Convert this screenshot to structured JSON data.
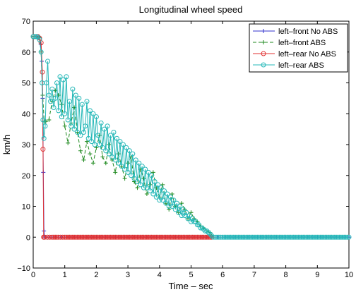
{
  "chart_data": {
    "type": "line",
    "title": "Longitudinal wheel speed",
    "xlabel": "Time – sec",
    "ylabel": "km/h",
    "xlim": [
      0,
      10
    ],
    "ylim": [
      -10,
      70
    ],
    "xticks": [
      0,
      1,
      2,
      3,
      4,
      5,
      6,
      7,
      8,
      9,
      10
    ],
    "yticks": [
      -10,
      0,
      10,
      20,
      30,
      40,
      50,
      60,
      70
    ],
    "xtick_labels": [
      "0",
      "1",
      "2",
      "3",
      "4",
      "5",
      "6",
      "7",
      "8",
      "9",
      "10"
    ],
    "ytick_labels": [
      "−10",
      "0",
      "10",
      "20",
      "30",
      "40",
      "50",
      "60",
      "70"
    ],
    "grid": false,
    "legend_position": "top-right",
    "series": [
      {
        "name": "left–front No ABS",
        "color": "#3030cc",
        "marker": "plus",
        "line": "solid",
        "x": [
          0.0,
          0.05,
          0.1,
          0.15,
          0.2,
          0.24,
          0.27,
          0.3,
          0.32,
          0.34,
          0.36,
          0.4,
          0.5,
          1,
          2,
          3,
          4,
          5,
          5.7,
          6,
          7,
          8,
          9,
          10
        ],
        "y": [
          65,
          65,
          65,
          65,
          64.6,
          62.5,
          57,
          45,
          21,
          2,
          0,
          0,
          0,
          0,
          0,
          0,
          0,
          0,
          0,
          0,
          0,
          0,
          0,
          0
        ]
      },
      {
        "name": "left–front ABS",
        "color": "#1f8a1f",
        "marker": "plus",
        "line": "dashed",
        "x": [
          0.0,
          0.1,
          0.2,
          0.25,
          0.3,
          0.35,
          0.4,
          0.5,
          0.6,
          0.7,
          0.8,
          0.9,
          1.0,
          1.1,
          1.2,
          1.3,
          1.4,
          1.5,
          1.6,
          1.7,
          1.8,
          1.9,
          2.0,
          2.1,
          2.2,
          2.3,
          2.4,
          2.5,
          2.6,
          2.7,
          2.8,
          2.9,
          3.0,
          3.1,
          3.2,
          3.3,
          3.4,
          3.5,
          3.6,
          3.7,
          3.8,
          3.9,
          4.0,
          4.1,
          4.2,
          4.3,
          4.4,
          4.5,
          4.6,
          4.7,
          4.8,
          4.9,
          5.0,
          5.1,
          5.2,
          5.3,
          5.4,
          5.5,
          5.6,
          5.7
        ],
        "y": [
          65,
          65,
          64.8,
          60,
          46,
          37.5,
          37.5,
          38,
          44,
          47.5,
          46,
          43,
          36,
          30.5,
          37,
          42,
          34,
          28,
          25,
          31,
          27,
          24,
          29,
          33,
          26,
          24,
          30,
          25,
          21,
          27,
          23,
          19,
          24,
          26,
          18,
          16,
          22,
          19,
          14,
          17,
          21,
          16,
          13,
          17,
          11,
          9,
          14,
          10,
          8,
          11,
          9,
          6,
          8,
          6,
          5,
          3.5,
          3,
          2,
          1.5,
          0
        ]
      },
      {
        "name": "left–rear No ABS",
        "color": "#e03030",
        "marker": "circle",
        "line": "solid",
        "x": [
          0.0,
          0.05,
          0.1,
          0.15,
          0.2,
          0.25,
          0.29,
          0.31,
          0.33,
          0.36,
          0.45,
          0.6,
          0.8,
          1.0,
          1.5,
          2.0,
          2.5,
          3.0,
          3.5,
          4.0,
          4.5,
          5.0,
          5.5,
          5.65
        ],
        "y": [
          65,
          65,
          65,
          65,
          64.5,
          63,
          53.5,
          28.5,
          0,
          0,
          0,
          0,
          0,
          0,
          0,
          0,
          0,
          0,
          0,
          0,
          0,
          0,
          0,
          0
        ]
      },
      {
        "name": "left–rear ABS",
        "color": "#26b8b8",
        "marker": "circle",
        "line": "solid",
        "x": [
          0.0,
          0.05,
          0.1,
          0.15,
          0.2,
          0.25,
          0.28,
          0.31,
          0.34,
          0.38,
          0.42,
          0.46,
          0.5,
          0.55,
          0.6,
          0.65,
          0.7,
          0.75,
          0.8,
          0.85,
          0.9,
          0.95,
          1.0,
          1.05,
          1.1,
          1.15,
          1.2,
          1.25,
          1.3,
          1.35,
          1.4,
          1.45,
          1.5,
          1.55,
          1.6,
          1.65,
          1.7,
          1.75,
          1.8,
          1.85,
          1.9,
          1.95,
          2.0,
          2.05,
          2.1,
          2.15,
          2.2,
          2.25,
          2.3,
          2.35,
          2.4,
          2.45,
          2.5,
          2.55,
          2.6,
          2.65,
          2.7,
          2.75,
          2.8,
          2.85,
          2.9,
          2.95,
          3.0,
          3.05,
          3.1,
          3.15,
          3.2,
          3.25,
          3.3,
          3.35,
          3.4,
          3.45,
          3.5,
          3.55,
          3.6,
          3.65,
          3.7,
          3.75,
          3.8,
          3.85,
          3.9,
          3.95,
          4.0,
          4.05,
          4.1,
          4.15,
          4.2,
          4.25,
          4.3,
          4.35,
          4.4,
          4.45,
          4.5,
          4.55,
          4.6,
          4.65,
          4.7,
          4.75,
          4.8,
          4.85,
          4.9,
          4.95,
          5.0,
          5.05,
          5.1,
          5.15,
          5.2,
          5.25,
          5.3,
          5.35,
          5.4,
          5.45,
          5.5,
          5.55,
          5.6,
          5.65,
          5.7,
          6.0,
          6.5,
          7.0,
          7.5,
          8.0,
          8.5,
          9.0,
          9.5,
          10.0
        ],
        "y": [
          65,
          65,
          65,
          64.8,
          64,
          60,
          50,
          38,
          32,
          36,
          50,
          57,
          46,
          44,
          48,
          42,
          45,
          50,
          41,
          52,
          39,
          51,
          40,
          52,
          38,
          44,
          36,
          48,
          35,
          46,
          34,
          45,
          33,
          43,
          34,
          36,
          44,
          32,
          41,
          31,
          40,
          30,
          39,
          33,
          30,
          37,
          29,
          35,
          28,
          36,
          27,
          33,
          26,
          34,
          25,
          32,
          24,
          31,
          23,
          30,
          22,
          29,
          21,
          28,
          20,
          27,
          19,
          25,
          18,
          24,
          17,
          23,
          16,
          22,
          16,
          21,
          15,
          20,
          14,
          18,
          13,
          17,
          12,
          16,
          12,
          15,
          11,
          14,
          10,
          13,
          10,
          12,
          9,
          11,
          8,
          10,
          7,
          9,
          7,
          8,
          6,
          7,
          5,
          6,
          5,
          5,
          4,
          4,
          3,
          3,
          2.5,
          2,
          2,
          1.5,
          1,
          0.5,
          0,
          0,
          0,
          0,
          0,
          0,
          0,
          0,
          0,
          0
        ]
      }
    ]
  }
}
